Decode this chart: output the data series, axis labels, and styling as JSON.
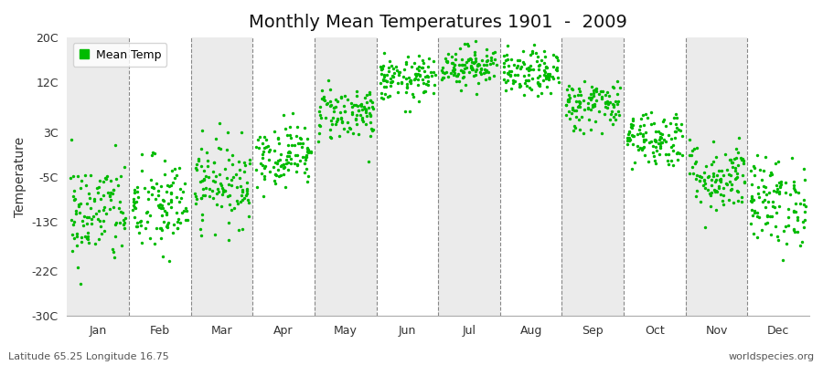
{
  "title": "Monthly Mean Temperatures 1901  -  2009",
  "ylabel": "Temperature",
  "xlabel_bottom_left": "Latitude 65.25 Longitude 16.75",
  "xlabel_bottom_right": "worldspecies.org",
  "legend_label": "Mean Temp",
  "dot_color": "#00bb00",
  "background_color": "#ffffff",
  "plot_bg_color": "#ffffff",
  "alt_band_color": "#ebebeb",
  "ylim": [
    -30,
    20
  ],
  "yticks": [
    -30,
    -22,
    -13,
    -5,
    3,
    12,
    20
  ],
  "ytick_labels": [
    "-30C",
    "-22C",
    "-13C",
    "-5C",
    "3C",
    "12C",
    "20C"
  ],
  "months": [
    "Jan",
    "Feb",
    "Mar",
    "Apr",
    "May",
    "Jun",
    "Jul",
    "Aug",
    "Sep",
    "Oct",
    "Nov",
    "Dec"
  ],
  "month_means": [
    -11.5,
    -10.5,
    -6.0,
    -1.0,
    6.5,
    12.5,
    15.0,
    13.5,
    8.0,
    2.0,
    -5.0,
    -9.5
  ],
  "month_stds": [
    4.8,
    4.5,
    3.8,
    2.8,
    2.5,
    2.0,
    1.8,
    2.0,
    2.3,
    2.6,
    3.2,
    4.0
  ],
  "n_years": 109,
  "seed": 42,
  "dot_size": 6,
  "dot_alpha": 1.0,
  "dashed_line_color": "#888888",
  "title_fontsize": 14,
  "tick_fontsize": 9,
  "ylabel_fontsize": 10
}
